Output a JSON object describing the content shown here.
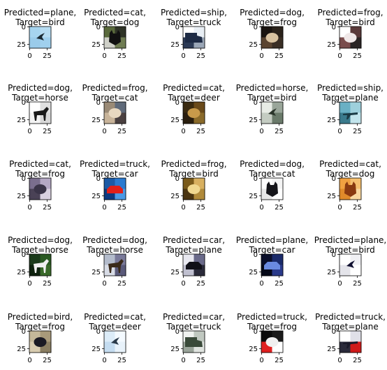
{
  "chart_data": {
    "type": "image-grid",
    "layout": {
      "rows": 5,
      "cols": 5
    },
    "tick_labels": {
      "x": [
        "0",
        "25"
      ],
      "y": [
        "0",
        "25"
      ]
    },
    "panels": [
      {
        "predicted": "plane",
        "target": "bird",
        "title_line1": "Predicted=plane,",
        "title_line2": "Target=bird",
        "colors": [
          "#a6d4ef",
          "#b6dcf2",
          "#9acbea",
          "#a0d0ee"
        ],
        "glyph": "#1b2a33",
        "glyph_shape": "bird"
      },
      {
        "predicted": "cat",
        "target": "dog",
        "title_line1": "Predicted=cat,",
        "title_line2": "Target=dog",
        "colors": [
          "#5a6a3c",
          "#2e3326",
          "#cfd0c8",
          "#6f7c52"
        ],
        "glyph": "#111111",
        "glyph_shape": "dog"
      },
      {
        "predicted": "ship",
        "target": "truck",
        "title_line1": "Predicted=ship,",
        "title_line2": "Target=truck",
        "colors": [
          "#ffffff",
          "#e8eef4",
          "#2c3a55",
          "#9aa6b6"
        ],
        "glyph": "#1d2a44",
        "glyph_shape": "truck"
      },
      {
        "predicted": "dog",
        "target": "frog",
        "title_line1": "Predicted=dog,",
        "title_line2": "Target=frog",
        "colors": [
          "#1a1410",
          "#2a221a",
          "#5a4430",
          "#3a2e24"
        ],
        "glyph": "#d8c2a0",
        "glyph_shape": "blob"
      },
      {
        "predicted": "frog",
        "target": "bird",
        "title_line1": "Predicted=frog,",
        "title_line2": "Target=bird",
        "colors": [
          "#ffffff",
          "#5a3a3a",
          "#7a4c4c",
          "#2a2424"
        ],
        "glyph": "#f0e8e8",
        "glyph_shape": "blob"
      },
      {
        "predicted": "dog",
        "target": "horse",
        "title_line1": "Predicted=dog,",
        "title_line2": "Target=horse",
        "colors": [
          "#ffffff",
          "#e0e0e0",
          "#f4f4f4",
          "#d8d8d8"
        ],
        "glyph": "#1a1a1a",
        "glyph_shape": "horse"
      },
      {
        "predicted": "frog",
        "target": "cat",
        "title_line1": "Predicted=frog,",
        "title_line2": "Target=cat",
        "colors": [
          "#9a8a76",
          "#5f6a7a",
          "#c8b49a",
          "#4a4040"
        ],
        "glyph": "#e8d8c0",
        "glyph_shape": "blob"
      },
      {
        "predicted": "cat",
        "target": "deer",
        "title_line1": "Predicted=cat,",
        "title_line2": "Target=deer",
        "colors": [
          "#3a2a10",
          "#6a4a1a",
          "#2a1e0e",
          "#8a6a2a"
        ],
        "glyph": "#c89a4a",
        "glyph_shape": "blob"
      },
      {
        "predicted": "horse",
        "target": "bird",
        "title_line1": "Predicted=horse,",
        "title_line2": "Target=bird",
        "colors": [
          "#e8ece6",
          "#9aa69a",
          "#c4ccc2",
          "#6a7a6a"
        ],
        "glyph": "#2a342a",
        "glyph_shape": "bird"
      },
      {
        "predicted": "ship",
        "target": "plane",
        "title_line1": "Predicted=ship,",
        "title_line2": "Target=plane",
        "colors": [
          "#6ab0c4",
          "#9ed0dc",
          "#3a7a8c",
          "#c2e4ec"
        ],
        "glyph": "#1a3a44",
        "glyph_shape": "plane"
      },
      {
        "predicted": "cat",
        "target": "frog",
        "title_line1": "Predicted=cat,",
        "title_line2": "Target=frog",
        "colors": [
          "#7a6e8e",
          "#b4a8c4",
          "#4a4256",
          "#d8d0e0"
        ],
        "glyph": "#3a3448",
        "glyph_shape": "blob"
      },
      {
        "predicted": "truck",
        "target": "car",
        "title_line1": "Predicted=truck,",
        "title_line2": "Target=car",
        "colors": [
          "#1c5aa6",
          "#2a7ad0",
          "#0c3a80",
          "#4a9ae6"
        ],
        "glyph": "#e0201a",
        "glyph_shape": "car"
      },
      {
        "predicted": "frog",
        "target": "bird",
        "title_line1": "Predicted=frog,",
        "title_line2": "Target=bird",
        "colors": [
          "#7a5a1a",
          "#d8b060",
          "#4a3410",
          "#b08a3a"
        ],
        "glyph": "#f0d890",
        "glyph_shape": "blob"
      },
      {
        "predicted": "dog",
        "target": "cat",
        "title_line1": "Predicted=dog,",
        "title_line2": "Target=cat",
        "colors": [
          "#ffffff",
          "#f4f4f4",
          "#e8e8e8",
          "#ffffff"
        ],
        "glyph": "#15151a",
        "glyph_shape": "cat"
      },
      {
        "predicted": "cat",
        "target": "dog",
        "title_line1": "Predicted=cat,",
        "title_line2": "Target=dog",
        "colors": [
          "#f0a040",
          "#f6c070",
          "#e08a2a",
          "#fad8a0"
        ],
        "glyph": "#8a3a10",
        "glyph_shape": "dog"
      },
      {
        "predicted": "dog",
        "target": "horse",
        "title_line1": "Predicted=dog,",
        "title_line2": "Target=horse",
        "colors": [
          "#1a3a1a",
          "#2a5a22",
          "#0e220e",
          "#3a6a2a"
        ],
        "glyph": "#f0f0f0",
        "glyph_shape": "horse"
      },
      {
        "predicted": "dog",
        "target": "horse",
        "title_line1": "Predicted=dog,",
        "title_line2": "Target=horse",
        "colors": [
          "#b4bccc",
          "#7a7a9a",
          "#d8dce6",
          "#5a5a7a"
        ],
        "glyph": "#3a2a1a",
        "glyph_shape": "horse"
      },
      {
        "predicted": "car",
        "target": "plane",
        "title_line1": "Predicted=car,",
        "title_line2": "Target=plane",
        "colors": [
          "#e8e8f0",
          "#6a6a8a",
          "#c0c0d0",
          "#2a2a3a"
        ],
        "glyph": "#101018",
        "glyph_shape": "car"
      },
      {
        "predicted": "plane",
        "target": "car",
        "title_line1": "Predicted=plane,",
        "title_line2": "Target=car",
        "colors": [
          "#0a0e2a",
          "#1a2a6a",
          "#050818",
          "#2a3a8a"
        ],
        "glyph": "#6a8ae0",
        "glyph_shape": "car"
      },
      {
        "predicted": "plane",
        "target": "bird",
        "title_line1": "Predicted=plane,",
        "title_line2": "Target=bird",
        "colors": [
          "#ffffff",
          "#f0f0f4",
          "#e4e4ea",
          "#ffffff"
        ],
        "glyph": "#101030",
        "glyph_shape": "bird"
      },
      {
        "predicted": "bird",
        "target": "frog",
        "title_line1": "Predicted=bird,",
        "title_line2": "Target=frog",
        "colors": [
          "#c4b89a",
          "#a89a7a",
          "#d8ccb0",
          "#8a7e62"
        ],
        "glyph": "#1a1a24",
        "glyph_shape": "blob"
      },
      {
        "predicted": "cat",
        "target": "deer",
        "title_line1": "Predicted=cat,",
        "title_line2": "Target=deer",
        "colors": [
          "#dcecf8",
          "#f4faff",
          "#c4dcf0",
          "#e8f2fa"
        ],
        "glyph": "#2a3a4a",
        "glyph_shape": "bird"
      },
      {
        "predicted": "car",
        "target": "truck",
        "title_line1": "Predicted=car,",
        "title_line2": "Target=truck",
        "colors": [
          "#f0f2f0",
          "#c0c8c0",
          "#9aa49a",
          "#e0e4e0"
        ],
        "glyph": "#3a4a3a",
        "glyph_shape": "truck"
      },
      {
        "predicted": "truck",
        "target": "frog",
        "title_line1": "Predicted=truck,",
        "title_line2": "Target=frog",
        "colors": [
          "#0a0a0a",
          "#1a1a1a",
          "#e02020",
          "#ffffff"
        ],
        "glyph": "#f0f0f0",
        "glyph_shape": "blob"
      },
      {
        "predicted": "truck",
        "target": "plane",
        "title_line1": "Predicted=truck,",
        "title_line2": "Target=plane",
        "colors": [
          "#ffffff",
          "#e0e0e8",
          "#2a2a3a",
          "#d01a1a"
        ],
        "glyph": "#1a1a2a",
        "glyph_shape": "plane"
      }
    ]
  }
}
